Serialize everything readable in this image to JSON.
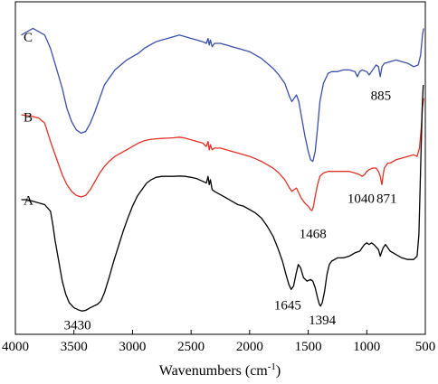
{
  "chart_data": {
    "type": "line",
    "xlabel": "Wavenumbers (cm",
    "xlabel_sup": "-1",
    "xlabel_suffix": ")",
    "ylabel": "",
    "xlim": [
      4000,
      500
    ],
    "ylim": [
      0,
      100
    ],
    "x_reversed": true,
    "y_ticks_shown": false,
    "grid": false,
    "legend": "none",
    "x_ticks": [
      {
        "value": 4000,
        "label": "4000"
      },
      {
        "value": 3500,
        "label": "3500"
      },
      {
        "value": 3000,
        "label": "3000"
      },
      {
        "value": 2500,
        "label": "2500"
      },
      {
        "value": 2000,
        "label": "2000"
      },
      {
        "value": 1500,
        "label": "1500"
      },
      {
        "value": 1000,
        "label": "1000"
      },
      {
        "value": 500,
        "label": "500"
      }
    ],
    "series": [
      {
        "name": "C",
        "color": "#3b4fa8",
        "label_pos": [
          3930,
          88
        ],
        "points": [
          [
            3950,
            90
          ],
          [
            3900,
            91
          ],
          [
            3850,
            92
          ],
          [
            3800,
            91
          ],
          [
            3750,
            90
          ],
          [
            3700,
            86
          ],
          [
            3650,
            80
          ],
          [
            3600,
            74
          ],
          [
            3560,
            68
          ],
          [
            3520,
            64
          ],
          [
            3480,
            61.5
          ],
          [
            3440,
            60.5
          ],
          [
            3400,
            61
          ],
          [
            3360,
            63.5
          ],
          [
            3320,
            67
          ],
          [
            3280,
            71
          ],
          [
            3240,
            75
          ],
          [
            3200,
            77
          ],
          [
            3150,
            79.5
          ],
          [
            3100,
            81
          ],
          [
            3050,
            82.5
          ],
          [
            3000,
            83.5
          ],
          [
            2950,
            84.5
          ],
          [
            2900,
            86
          ],
          [
            2850,
            87
          ],
          [
            2800,
            88
          ],
          [
            2750,
            88.5
          ],
          [
            2700,
            89
          ],
          [
            2650,
            89.5
          ],
          [
            2600,
            90
          ],
          [
            2550,
            89.5
          ],
          [
            2500,
            89
          ],
          [
            2450,
            88.5
          ],
          [
            2400,
            88
          ],
          [
            2370,
            87.5
          ],
          [
            2355,
            89
          ],
          [
            2345,
            87
          ],
          [
            2335,
            88.5
          ],
          [
            2320,
            86.5
          ],
          [
            2300,
            87.5
          ],
          [
            2250,
            87.5
          ],
          [
            2200,
            87
          ],
          [
            2150,
            86.5
          ],
          [
            2100,
            86
          ],
          [
            2050,
            85.5
          ],
          [
            2000,
            85
          ],
          [
            1950,
            84
          ],
          [
            1900,
            83
          ],
          [
            1850,
            81.5
          ],
          [
            1800,
            80
          ],
          [
            1750,
            78
          ],
          [
            1700,
            75.5
          ],
          [
            1660,
            71.5
          ],
          [
            1640,
            70
          ],
          [
            1620,
            71
          ],
          [
            1600,
            72
          ],
          [
            1580,
            70
          ],
          [
            1560,
            66
          ],
          [
            1530,
            60
          ],
          [
            1500,
            55
          ],
          [
            1480,
            52.5
          ],
          [
            1460,
            52
          ],
          [
            1440,
            55
          ],
          [
            1420,
            62
          ],
          [
            1400,
            70
          ],
          [
            1370,
            75.5
          ],
          [
            1330,
            78.5
          ],
          [
            1300,
            79
          ],
          [
            1250,
            79
          ],
          [
            1200,
            79.5
          ],
          [
            1150,
            79.5
          ],
          [
            1100,
            79
          ],
          [
            1080,
            77.5
          ],
          [
            1060,
            79
          ],
          [
            1040,
            79.5
          ],
          [
            1000,
            79
          ],
          [
            980,
            78
          ],
          [
            960,
            79
          ],
          [
            940,
            80
          ],
          [
            920,
            81
          ],
          [
            900,
            80.5
          ],
          [
            885,
            77.5
          ],
          [
            870,
            80.5
          ],
          [
            850,
            81.5
          ],
          [
            800,
            82
          ],
          [
            750,
            82.5
          ],
          [
            700,
            82
          ],
          [
            650,
            81.5
          ],
          [
            600,
            80.5
          ],
          [
            560,
            81
          ],
          [
            540,
            84
          ],
          [
            525,
            90
          ],
          [
            515,
            92
          ]
        ]
      },
      {
        "name": "B",
        "color": "#e03226",
        "label_pos": [
          3930,
          64
        ],
        "points": [
          [
            3950,
            66
          ],
          [
            3900,
            65.8
          ],
          [
            3850,
            65.5
          ],
          [
            3800,
            65
          ],
          [
            3750,
            63.5
          ],
          [
            3700,
            58
          ],
          [
            3650,
            53
          ],
          [
            3600,
            48
          ],
          [
            3560,
            45
          ],
          [
            3520,
            43
          ],
          [
            3480,
            41.8
          ],
          [
            3440,
            41.3
          ],
          [
            3400,
            41.8
          ],
          [
            3360,
            43.5
          ],
          [
            3320,
            46
          ],
          [
            3280,
            48.5
          ],
          [
            3240,
            50.5
          ],
          [
            3200,
            52
          ],
          [
            3150,
            53.5
          ],
          [
            3100,
            54.5
          ],
          [
            3050,
            55.5
          ],
          [
            3000,
            56.5
          ],
          [
            2950,
            57.5
          ],
          [
            2900,
            58.2
          ],
          [
            2850,
            58.6
          ],
          [
            2800,
            58.8
          ],
          [
            2750,
            58.9
          ],
          [
            2700,
            59
          ],
          [
            2650,
            59.1
          ],
          [
            2600,
            59.3
          ],
          [
            2550,
            59
          ],
          [
            2500,
            58.5
          ],
          [
            2450,
            58
          ],
          [
            2400,
            57.5
          ],
          [
            2370,
            56.5
          ],
          [
            2355,
            58
          ],
          [
            2345,
            55.5
          ],
          [
            2335,
            57
          ],
          [
            2320,
            55.5
          ],
          [
            2300,
            56
          ],
          [
            2250,
            56
          ],
          [
            2200,
            55.5
          ],
          [
            2150,
            55
          ],
          [
            2100,
            54.5
          ],
          [
            2050,
            54
          ],
          [
            2000,
            53.5
          ],
          [
            1950,
            52.8
          ],
          [
            1900,
            52
          ],
          [
            1850,
            51
          ],
          [
            1800,
            50
          ],
          [
            1750,
            48.5
          ],
          [
            1700,
            46.5
          ],
          [
            1660,
            44
          ],
          [
            1640,
            43
          ],
          [
            1620,
            43.5
          ],
          [
            1600,
            44
          ],
          [
            1580,
            42.5
          ],
          [
            1560,
            41
          ],
          [
            1530,
            39.5
          ],
          [
            1500,
            38.5
          ],
          [
            1480,
            37.5
          ],
          [
            1468,
            37.2
          ],
          [
            1455,
            38.5
          ],
          [
            1440,
            41.5
          ],
          [
            1420,
            45
          ],
          [
            1400,
            47.5
          ],
          [
            1370,
            48.5
          ],
          [
            1330,
            49
          ],
          [
            1300,
            49
          ],
          [
            1250,
            49
          ],
          [
            1200,
            49
          ],
          [
            1150,
            49
          ],
          [
            1100,
            48.5
          ],
          [
            1060,
            48
          ],
          [
            1040,
            47.5
          ],
          [
            1020,
            48
          ],
          [
            1000,
            49
          ],
          [
            980,
            49.5
          ],
          [
            950,
            50
          ],
          [
            920,
            50
          ],
          [
            900,
            49
          ],
          [
            885,
            47.5
          ],
          [
            871,
            45
          ],
          [
            860,
            48
          ],
          [
            850,
            50
          ],
          [
            820,
            51.5
          ],
          [
            800,
            51.5
          ],
          [
            750,
            52.5
          ],
          [
            700,
            53
          ],
          [
            650,
            53.5
          ],
          [
            600,
            54
          ],
          [
            570,
            53.5
          ],
          [
            550,
            56
          ],
          [
            535,
            62
          ],
          [
            525,
            68
          ],
          [
            515,
            71
          ]
        ]
      },
      {
        "name": "A",
        "color": "#000000",
        "label_pos": [
          3930,
          39
        ],
        "points": [
          [
            3950,
            40.5
          ],
          [
            3900,
            40.5
          ],
          [
            3850,
            40
          ],
          [
            3800,
            39.5
          ],
          [
            3750,
            39
          ],
          [
            3700,
            37
          ],
          [
            3680,
            33
          ],
          [
            3660,
            28
          ],
          [
            3630,
            22
          ],
          [
            3600,
            16
          ],
          [
            3570,
            12
          ],
          [
            3540,
            9.5
          ],
          [
            3500,
            8
          ],
          [
            3460,
            7.3
          ],
          [
            3430,
            7
          ],
          [
            3400,
            7.2
          ],
          [
            3360,
            8
          ],
          [
            3330,
            8.5
          ],
          [
            3300,
            9
          ],
          [
            3270,
            10
          ],
          [
            3240,
            12.5
          ],
          [
            3200,
            17
          ],
          [
            3160,
            22
          ],
          [
            3120,
            26.5
          ],
          [
            3080,
            31
          ],
          [
            3040,
            35
          ],
          [
            3000,
            38.5
          ],
          [
            2960,
            41.5
          ],
          [
            2920,
            43.5
          ],
          [
            2880,
            45.5
          ],
          [
            2840,
            46.5
          ],
          [
            2800,
            47.2
          ],
          [
            2750,
            47.5
          ],
          [
            2700,
            47.5
          ],
          [
            2650,
            47.5
          ],
          [
            2600,
            47.6
          ],
          [
            2550,
            47.5
          ],
          [
            2500,
            47.2
          ],
          [
            2450,
            46.8
          ],
          [
            2400,
            46
          ],
          [
            2370,
            45.5
          ],
          [
            2355,
            47.5
          ],
          [
            2345,
            45
          ],
          [
            2335,
            46.5
          ],
          [
            2320,
            43.5
          ],
          [
            2300,
            43
          ],
          [
            2250,
            42
          ],
          [
            2200,
            41
          ],
          [
            2150,
            40
          ],
          [
            2100,
            39
          ],
          [
            2050,
            38.5
          ],
          [
            2000,
            37.5
          ],
          [
            1950,
            36.5
          ],
          [
            1900,
            35
          ],
          [
            1850,
            32.5
          ],
          [
            1800,
            29.5
          ],
          [
            1760,
            26
          ],
          [
            1720,
            22
          ],
          [
            1690,
            18
          ],
          [
            1665,
            15
          ],
          [
            1645,
            13.5
          ],
          [
            1625,
            14.5
          ],
          [
            1605,
            18
          ],
          [
            1585,
            21
          ],
          [
            1565,
            20
          ],
          [
            1540,
            17
          ],
          [
            1510,
            16
          ],
          [
            1480,
            16.5
          ],
          [
            1460,
            16
          ],
          [
            1440,
            14
          ],
          [
            1420,
            11
          ],
          [
            1405,
            9
          ],
          [
            1394,
            8.5
          ],
          [
            1380,
            9.5
          ],
          [
            1360,
            13
          ],
          [
            1340,
            18
          ],
          [
            1320,
            21
          ],
          [
            1300,
            22
          ],
          [
            1250,
            23
          ],
          [
            1200,
            23
          ],
          [
            1150,
            23.5
          ],
          [
            1100,
            24.5
          ],
          [
            1060,
            25
          ],
          [
            1040,
            26
          ],
          [
            1020,
            27
          ],
          [
            1000,
            27.5
          ],
          [
            980,
            27
          ],
          [
            960,
            27.5
          ],
          [
            940,
            27
          ],
          [
            900,
            25.5
          ],
          [
            885,
            23.5
          ],
          [
            871,
            25
          ],
          [
            860,
            26
          ],
          [
            840,
            27
          ],
          [
            800,
            25
          ],
          [
            750,
            24
          ],
          [
            700,
            23
          ],
          [
            650,
            22.5
          ],
          [
            600,
            22.5
          ],
          [
            570,
            23.5
          ],
          [
            555,
            30
          ],
          [
            540,
            50
          ],
          [
            527,
            68
          ],
          [
            518,
            75
          ]
        ]
      }
    ],
    "annotations": [
      {
        "text": "3430",
        "x": 3470,
        "y": 1.5
      },
      {
        "text": "1645",
        "x": 1675,
        "y": 7.5
      },
      {
        "text": "1394",
        "x": 1380,
        "y": 3
      },
      {
        "text": "1468",
        "x": 1460,
        "y": 29
      },
      {
        "text": "1040",
        "x": 1050,
        "y": 39.5
      },
      {
        "text": "871",
        "x": 830,
        "y": 39.5
      },
      {
        "text": "885",
        "x": 880,
        "y": 70.5
      }
    ]
  }
}
